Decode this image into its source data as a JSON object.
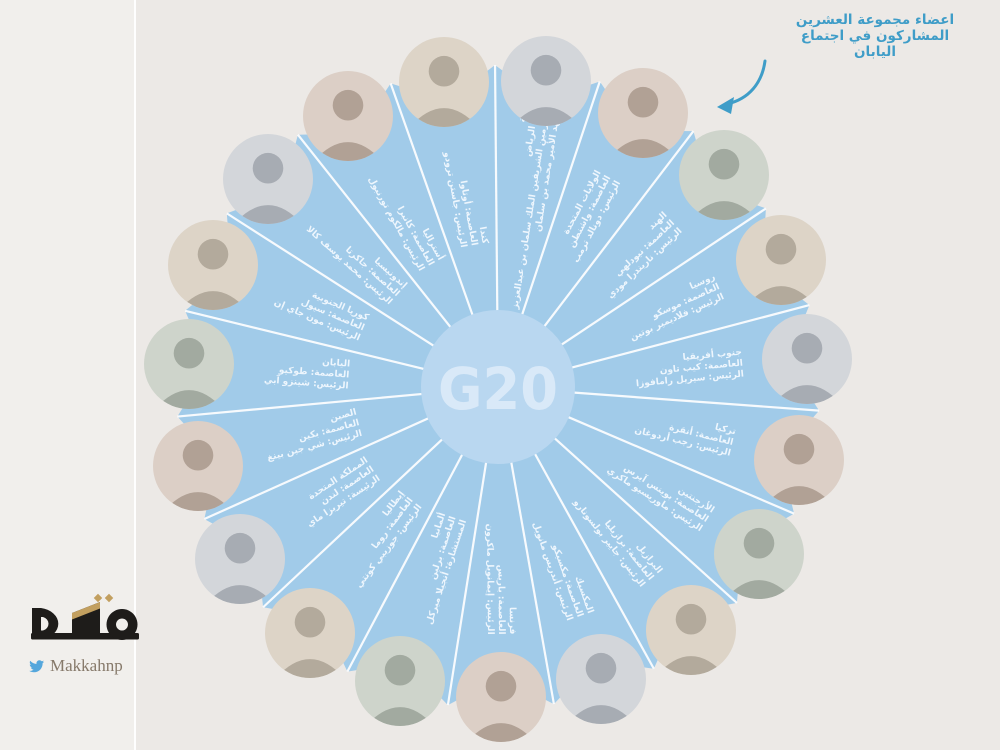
{
  "page": {
    "background": "#ece9e6"
  },
  "annotation": {
    "lines": [
      "اعضاء مجموعة العشرين",
      "المشاركون في اجتماع",
      "اليابان"
    ],
    "color": "#3f9dc8",
    "arrow_icon": "curved-arrow-down-left"
  },
  "wheel": {
    "center_label": "G20",
    "colors": {
      "wedge": "#a1cbe9",
      "center_circle": "#b9d7f0",
      "separator": "#ffffff",
      "label_text": "#eef6fd",
      "center_text": "#d9e9f8"
    },
    "members": [
      {
        "id": "canada",
        "lines": [
          "كندا",
          "العاصمة: أوتاوا",
          "الرئيس: جاستن ترودو"
        ]
      },
      {
        "id": "saudi-arabia",
        "lines": [
          "السعودية",
          "العاصمة: الرياض",
          "خادم الحرمين الشريفين الملك سلمان بن عبدالعزيز",
          "ولي العهد الأمير محمد بن سلمان"
        ]
      },
      {
        "id": "united-states",
        "lines": [
          "الولايات المتحدة",
          "العاصمة: واشنطن",
          "الرئيس: دونالد ترمب"
        ]
      },
      {
        "id": "india",
        "lines": [
          "الهند",
          "العاصمة: نيودلهي",
          "الرئيس: ناريندرا مودي"
        ]
      },
      {
        "id": "russia",
        "lines": [
          "روسيا",
          "العاصمة: موسكو",
          "الرئيس: فلاديمير بوتين"
        ]
      },
      {
        "id": "south-africa",
        "lines": [
          "جنوب أفريقيا",
          "العاصمة: كيب تاون",
          "الرئيس: سيريل رامافوزا"
        ]
      },
      {
        "id": "turkey",
        "lines": [
          "تركيا",
          "العاصمة: أنقرة",
          "الرئيس: رجب أردوغان"
        ]
      },
      {
        "id": "argentina",
        "lines": [
          "الأرجنتين",
          "العاصمة: بوينس آيرس",
          "الرئيس: ماوريسيو ماكري"
        ]
      },
      {
        "id": "brazil",
        "lines": [
          "البرازيل",
          "العاصمة: برازيليا",
          "الرئيس: جايير بولسونارو"
        ]
      },
      {
        "id": "mexico",
        "lines": [
          "المكسيك",
          "العاصمة: مكسيكو",
          "الرئيس: أندريس مانويل"
        ]
      },
      {
        "id": "france",
        "lines": [
          "فرنسا",
          "العاصمة: باريس",
          "الرئيس: إيمانويل ماكرون"
        ]
      },
      {
        "id": "germany",
        "lines": [
          "ألمانيا",
          "العاصمة: برلين",
          "المستشارة: أنجيلا ميركل"
        ]
      },
      {
        "id": "italy",
        "lines": [
          "إيطاليا",
          "العاصمة: روما",
          "الرئيس: جوزيبي كونتي"
        ]
      },
      {
        "id": "united-kingdom",
        "lines": [
          "المملكة المتحدة",
          "العاصمة: لندن",
          "الرئيسة: تيريزا ماي"
        ]
      },
      {
        "id": "china",
        "lines": [
          "الصين",
          "العاصمة: بكين",
          "الرئيس: شي جين بينغ"
        ]
      },
      {
        "id": "japan",
        "lines": [
          "اليابان",
          "العاصمة: طوكيو",
          "الرئيس: شينزو آبي"
        ]
      },
      {
        "id": "south-korea",
        "lines": [
          "كوريا الجنوبية",
          "العاصمة: سيول",
          "الرئيس: مون جاي إن"
        ]
      },
      {
        "id": "indonesia",
        "lines": [
          "إندونيسيا",
          "العاصمة: جاكرتا",
          "الرئيس: محمد يوسف كالا"
        ]
      },
      {
        "id": "australia",
        "lines": [
          "أستراليا",
          "العاصمة: كانبرا",
          "الرئيس: مالكوم تورنبول"
        ]
      }
    ]
  },
  "branding": {
    "logo_text": "مكة",
    "logo_icon": "makkah-kaaba-logo",
    "twitter_icon": "twitter-bird",
    "twitter_handle": "Makkahnp",
    "handle_color": "#86796a",
    "bird_color": "#55a7dc",
    "logo_color": "#1e1c1a",
    "logo_accent": "#c29f5f"
  }
}
